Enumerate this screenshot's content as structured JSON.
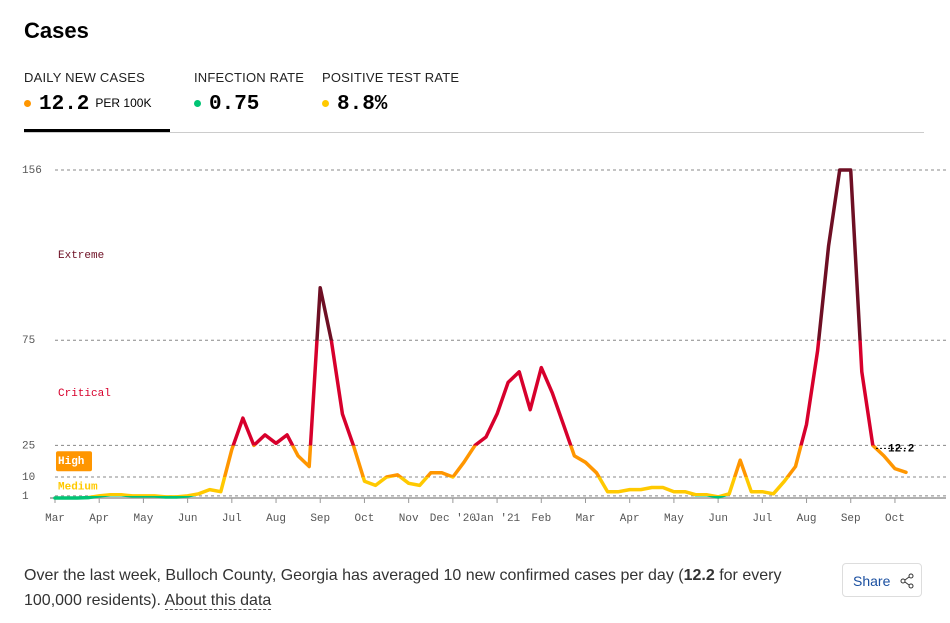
{
  "header": {
    "title": "Cases"
  },
  "tabs": [
    {
      "label": "DAILY NEW CASES",
      "value": "12.2",
      "unit": "PER 100K",
      "color": "#ff9600"
    },
    {
      "label": "INFECTION RATE",
      "value": "0.75",
      "color": "#00c474"
    },
    {
      "label": "POSITIVE TEST RATE",
      "value": "8.8%",
      "color": "#ffc900"
    }
  ],
  "chart_data": {
    "type": "line",
    "categories": [
      "Mar",
      null,
      null,
      null,
      "Apr",
      null,
      null,
      null,
      "May",
      null,
      null,
      null,
      "Jun",
      null,
      null,
      null,
      "Jul",
      null,
      null,
      null,
      "Aug",
      null,
      null,
      null,
      "Sep",
      null,
      null,
      null,
      "Oct",
      null,
      null,
      null,
      "Nov",
      null,
      null,
      null,
      "Dec '20",
      null,
      null,
      null,
      "Jan '21",
      null,
      null,
      null,
      "Feb",
      null,
      null,
      null,
      "Mar",
      null,
      null,
      null,
      "Apr",
      null,
      null,
      null,
      "May",
      null,
      null,
      null,
      "Jun",
      null,
      null,
      null,
      "Jul",
      null,
      null,
      null,
      "Aug",
      null,
      null,
      null,
      "Sep",
      null,
      null,
      null,
      "Oct",
      null
    ],
    "values": [
      0,
      0,
      0,
      0.2,
      1,
      1.5,
      1.5,
      1,
      1,
      1,
      0.5,
      0.5,
      1,
      2,
      4,
      3,
      23,
      38,
      25,
      30,
      26,
      30,
      20,
      15,
      100,
      75,
      40,
      25,
      8,
      6,
      10,
      11,
      7,
      6,
      12,
      12,
      10,
      17,
      25,
      29,
      40,
      55,
      60,
      42,
      62,
      50,
      35,
      20,
      17,
      12,
      3,
      3,
      4,
      4,
      5,
      5,
      3,
      3,
      1.5,
      1.5,
      0.5,
      2,
      18,
      3,
      3,
      2,
      8,
      15,
      35,
      70,
      120,
      156,
      156,
      60,
      25,
      20,
      14,
      12.2
    ],
    "ylim": [
      0,
      156
    ],
    "yticks": [
      1,
      10,
      25,
      75,
      156
    ],
    "grid": true,
    "levels": [
      {
        "name": "Extreme",
        "min": 75,
        "color": "#6e0f24"
      },
      {
        "name": "Critical",
        "min": 25,
        "color": "#d7002c"
      },
      {
        "name": "High",
        "min": 10,
        "color": "#ff9600"
      },
      {
        "name": "Medium",
        "min": 1,
        "color": "#ffc900"
      }
    ],
    "low_color": "#00c474"
  },
  "footer": {
    "text_before": "Over the last week, Bulloch County, Georgia has averaged 10 new confirmed cases per day (",
    "bold": "12.2",
    "text_after": " for every 100,000 residents). ",
    "link": "About this data",
    "share": "Share"
  }
}
